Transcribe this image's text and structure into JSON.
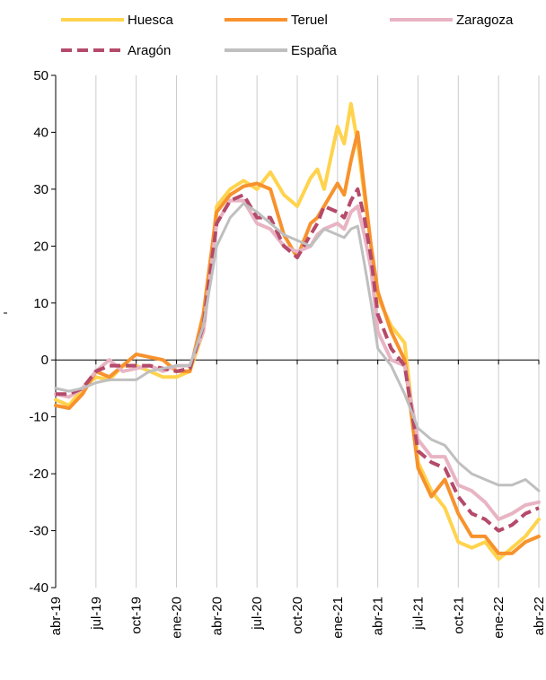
{
  "chart_data": {
    "type": "line",
    "title": "",
    "xlabel": "",
    "ylabel": "",
    "ylim": [
      -40,
      50
    ],
    "yticks": [
      -40,
      -30,
      -20,
      -10,
      0,
      10,
      20,
      30,
      40,
      50
    ],
    "xlim": [
      0,
      36
    ],
    "xtick_positions": [
      0,
      3,
      6,
      9,
      12,
      15,
      18,
      21,
      24,
      27,
      30,
      33,
      36
    ],
    "xtick_labels": [
      "abr-19",
      "jul-19",
      "oct-19",
      "ene-20",
      "abr-20",
      "jul-20",
      "oct-20",
      "ene-21",
      "abr-21",
      "jul-21",
      "oct-21",
      "ene-22",
      "abr-22"
    ],
    "grid": "vertical",
    "legend": "top",
    "series": [
      {
        "name": "Huesca",
        "color": "#ffd34d",
        "dash": "solid",
        "x": [
          0,
          1,
          2,
          3,
          4,
          5,
          6,
          7,
          8,
          9,
          10,
          11,
          12,
          13,
          14,
          15,
          16,
          17,
          18,
          19,
          19.5,
          20,
          21,
          21.5,
          22,
          22.5,
          23,
          23.5,
          24,
          25,
          26,
          27,
          28,
          29,
          30,
          31,
          32,
          33,
          34,
          35,
          36
        ],
        "y": [
          -7,
          -8,
          -5,
          -3,
          -3.5,
          -1,
          -1,
          -2,
          -3,
          -3,
          -2,
          5,
          27,
          30,
          31.5,
          30,
          33,
          29,
          27,
          32,
          33.5,
          30,
          41,
          38,
          45,
          38,
          29,
          20,
          11,
          6,
          3,
          -18,
          -23,
          -26,
          -32,
          -33,
          -32,
          -35,
          -33,
          -31,
          -28
        ]
      },
      {
        "name": "Teruel",
        "color": "#f7922d",
        "dash": "solid",
        "x": [
          0,
          1,
          2,
          3,
          4,
          5,
          6,
          7,
          8,
          9,
          10,
          11,
          12,
          13,
          14,
          15,
          16,
          17,
          18,
          19,
          19.5,
          20,
          21,
          21.5,
          22,
          22.5,
          23,
          23.5,
          24,
          25,
          26,
          27,
          28,
          29,
          30,
          31,
          32,
          33,
          34,
          35,
          36
        ],
        "y": [
          -8,
          -8.5,
          -6,
          -2,
          -3,
          -1,
          1,
          0.5,
          0,
          -2,
          -2,
          8,
          26,
          29,
          30.5,
          31,
          30,
          22,
          18,
          24,
          25,
          27,
          31,
          29,
          35,
          40,
          30,
          20,
          12,
          5,
          0,
          -19,
          -24,
          -21,
          -27,
          -31,
          -31,
          -34,
          -34,
          -32,
          -31
        ]
      },
      {
        "name": "Zaragoza",
        "color": "#e8b4c4",
        "dash": "solid",
        "x": [
          0,
          1,
          2,
          3,
          4,
          5,
          6,
          7,
          8,
          9,
          10,
          11,
          12,
          13,
          14,
          15,
          16,
          17,
          18,
          19,
          19.5,
          20,
          21,
          21.5,
          22,
          22.5,
          23,
          23.5,
          24,
          25,
          26,
          27,
          28,
          29,
          30,
          31,
          32,
          33,
          34,
          35,
          36
        ],
        "y": [
          -6,
          -6.5,
          -5,
          -2,
          0,
          -2,
          -1.5,
          -1,
          -2,
          -1,
          -1,
          5,
          24,
          28,
          28,
          24,
          23,
          20,
          19,
          20,
          22,
          23,
          24,
          23,
          26,
          27,
          22,
          16,
          5,
          0,
          -1,
          -14,
          -17,
          -17,
          -22,
          -23,
          -25,
          -28,
          -27,
          -25.5,
          -25
        ]
      },
      {
        "name": "Aragón",
        "color": "#b54a6a",
        "dash": "dashed",
        "x": [
          0,
          1,
          2,
          3,
          4,
          5,
          6,
          7,
          8,
          9,
          10,
          11,
          12,
          13,
          14,
          15,
          16,
          17,
          18,
          19,
          19.5,
          20,
          21,
          21.5,
          22,
          22.5,
          23,
          23.5,
          24,
          25,
          26,
          27,
          28,
          29,
          30,
          31,
          32,
          33,
          34,
          35,
          36
        ],
        "y": [
          -6,
          -6,
          -5,
          -2,
          -1,
          -1,
          -1,
          -1,
          -1.5,
          -2,
          -1.5,
          6,
          24,
          28,
          29,
          25,
          25,
          20,
          18,
          22,
          24,
          27,
          26,
          25,
          28,
          30,
          25,
          18,
          8,
          2,
          -1,
          -16,
          -18,
          -19,
          -24,
          -27,
          -28,
          -30,
          -29,
          -27,
          -26
        ]
      },
      {
        "name": "España",
        "color": "#bfbfbf",
        "dash": "solid",
        "x": [
          0,
          1,
          2,
          3,
          4,
          5,
          6,
          7,
          8,
          9,
          10,
          11,
          12,
          13,
          14,
          15,
          16,
          17,
          18,
          19,
          19.5,
          20,
          21,
          21.5,
          22,
          22.5,
          23,
          23.5,
          24,
          25,
          26,
          27,
          28,
          29,
          30,
          31,
          32,
          33,
          34,
          35,
          36
        ],
        "y": [
          -5,
          -5.5,
          -5,
          -4,
          -3.5,
          -3.5,
          -3.5,
          -2,
          -1.5,
          -1,
          -1,
          6,
          20,
          25,
          27.5,
          26,
          24,
          22,
          21,
          20,
          21.5,
          23,
          22,
          21.5,
          23,
          23.5,
          17,
          10,
          2,
          -1,
          -6,
          -12,
          -14,
          -15,
          -18,
          -20,
          -21,
          -22,
          -22,
          -21,
          -23
        ]
      }
    ]
  }
}
